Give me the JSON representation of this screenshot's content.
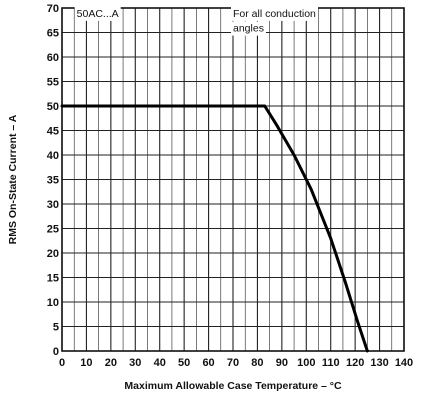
{
  "chart_data": {
    "type": "line",
    "xlabel": "Maximum Allowable Case Temperature – °C",
    "ylabel": "RMS On-State Current – A",
    "xlim": [
      0,
      140
    ],
    "ylim": [
      0,
      70
    ],
    "x_ticks": [
      "0",
      "10",
      "20",
      "30",
      "40",
      "50",
      "60",
      "70",
      "80",
      "90",
      "100",
      "110",
      "120",
      "130",
      "140"
    ],
    "y_ticks": [
      "0",
      "5",
      "10",
      "15",
      "20",
      "25",
      "30",
      "35",
      "40",
      "45",
      "50",
      "55",
      "60",
      "65",
      "70"
    ],
    "grid": true,
    "annotations": [
      {
        "text": "50AC...A",
        "x": 6,
        "y": 69
      },
      {
        "text": "For all conduction",
        "x": 70,
        "y": 69
      },
      {
        "text": "angles",
        "x": 70,
        "y": 66
      }
    ],
    "series": [
      {
        "x": [
          0,
          83,
          88,
          95,
          102,
          110,
          116,
          121,
          125
        ],
        "y": [
          50,
          50,
          46,
          40,
          33,
          23,
          14,
          6,
          0
        ]
      }
    ]
  }
}
